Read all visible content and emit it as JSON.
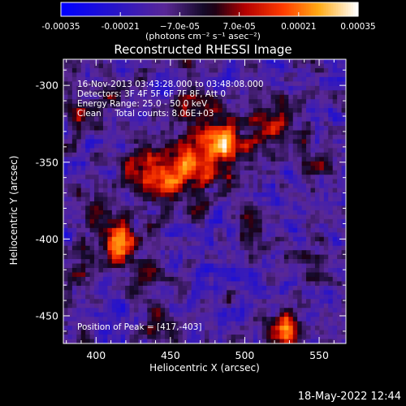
{
  "chart_data": {
    "type": "heatmap",
    "title": "Reconstructed RHESSI Image",
    "xlabel": "Heliocentric X (arcsec)",
    "ylabel": "Heliocentric Y (arcsec)",
    "xlim": [
      378,
      568
    ],
    "ylim": [
      -468,
      -283
    ],
    "xticks": [
      400,
      450,
      500,
      550
    ],
    "yticks": [
      -300,
      -350,
      -400,
      -450
    ],
    "colorbar": {
      "title": "(photons cm⁻² s⁻¹ asec⁻²)",
      "range": [
        -0.00035,
        0.00035
      ],
      "ticks": [
        "-0.00035",
        "-0.00021",
        "−7.0e-05",
        "7.0e-05",
        "0.00021",
        "0.00035"
      ],
      "tick_values": [
        -0.00035,
        -0.00021,
        -7e-05,
        7e-05,
        0.00021,
        0.00035
      ]
    },
    "annotation_lines": [
      "16-Nov-2013 03:43:28.000 to 03:48:08.000",
      "Detectors: 3F 4F 5F 6F 7F 8F, Att 0",
      "Energy Range: 25.0 - 50.0 keV",
      "Clean     Total counts: 8.06E+03"
    ],
    "peak_label": "Position of Peak = [417,-403]",
    "sources": [
      {
        "x": 417,
        "y": -403,
        "amp": 0.00035,
        "sigma": 8
      },
      {
        "x": 470,
        "y": -347,
        "amp": 0.00028,
        "sigma": 15
      },
      {
        "x": 487,
        "y": -335,
        "amp": 0.00022,
        "sigma": 11
      },
      {
        "x": 448,
        "y": -363,
        "amp": 0.00024,
        "sigma": 10
      },
      {
        "x": 430,
        "y": -353,
        "amp": 0.00018,
        "sigma": 10
      },
      {
        "x": 528,
        "y": -460,
        "amp": 0.00033,
        "sigma": 7
      },
      {
        "x": 393,
        "y": -323,
        "amp": 0.00016,
        "sigma": 9
      },
      {
        "x": 410,
        "y": -305,
        "amp": 0.00014,
        "sigma": 8
      },
      {
        "x": 520,
        "y": -327,
        "amp": 0.00016,
        "sigma": 10
      },
      {
        "x": 545,
        "y": -352,
        "amp": 0.00013,
        "sigma": 9
      },
      {
        "x": 400,
        "y": -380,
        "amp": 0.00015,
        "sigma": 9
      },
      {
        "x": 390,
        "y": -420,
        "amp": 0.00014,
        "sigma": 9
      },
      {
        "x": 430,
        "y": -425,
        "amp": 0.00016,
        "sigma": 9
      },
      {
        "x": 505,
        "y": -395,
        "amp": 0.00011,
        "sigma": 10
      },
      {
        "x": 540,
        "y": -420,
        "amp": 0.0001,
        "sigma": 9
      },
      {
        "x": 468,
        "y": -308,
        "amp": 0.00012,
        "sigma": 9
      },
      {
        "x": 445,
        "y": -455,
        "amp": 8e-05,
        "sigma": 8
      }
    ],
    "grid": false
  },
  "footer": {
    "date_stamp": "18-May-2022 12:44"
  }
}
